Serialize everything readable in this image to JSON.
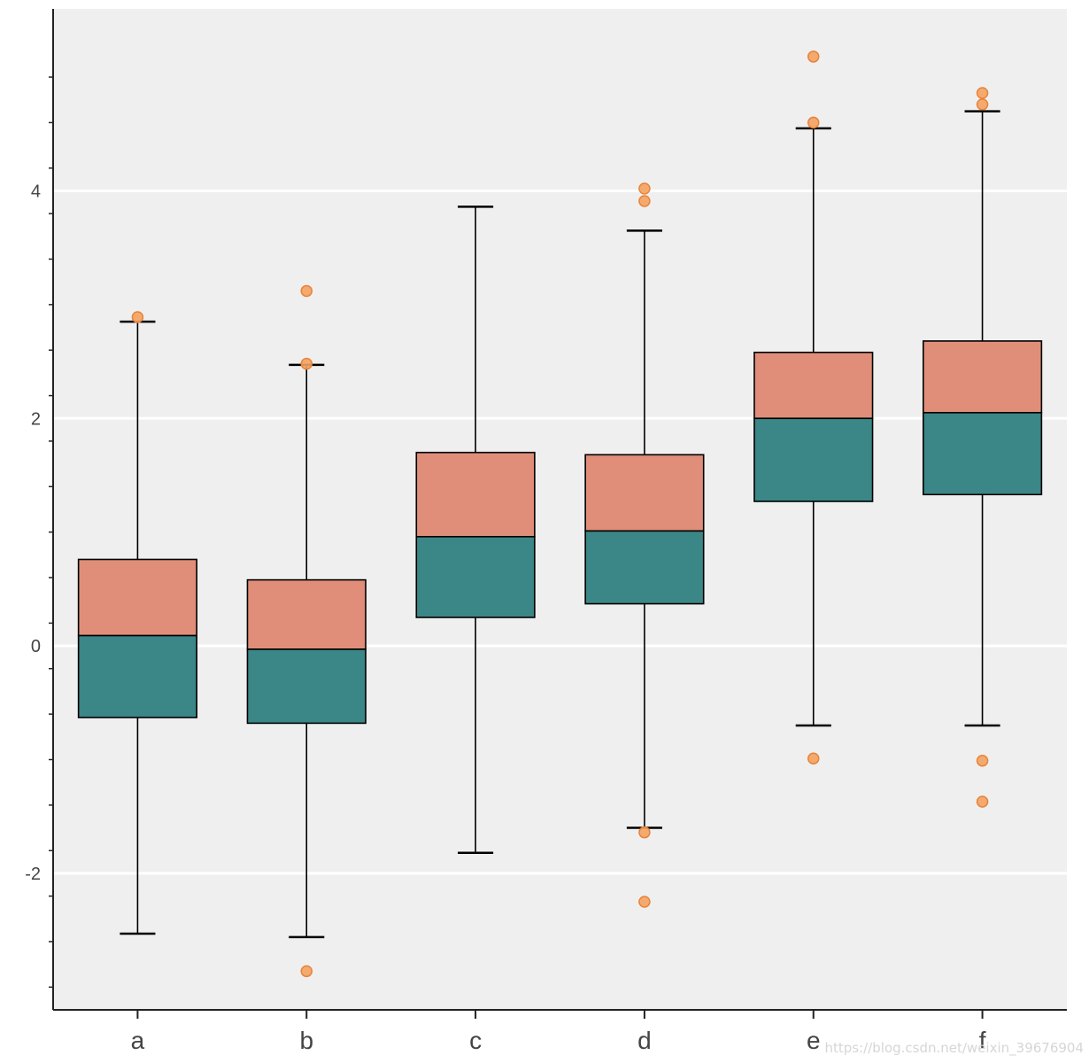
{
  "chart_data": {
    "type": "box",
    "title": "",
    "xlabel": "",
    "ylabel": "",
    "ylim": [
      -3.2,
      5.6
    ],
    "yticks": [
      -2,
      0,
      2,
      4
    ],
    "ytick_labels": [
      "-2",
      "0",
      "2",
      "4"
    ],
    "grid": "horizontal",
    "colors": {
      "background": "#efefef",
      "upper_box": "#e08e79",
      "lower_box": "#3b8686",
      "outlier": "#f4a261",
      "outlier_edge": "#e8823a",
      "grid": "#ffffff",
      "line": "#000000"
    },
    "categories": [
      "a",
      "b",
      "c",
      "d",
      "e",
      "f"
    ],
    "boxes": [
      {
        "label": "a",
        "whisker_low": -2.53,
        "q1": -0.63,
        "median": 0.09,
        "q3": 0.76,
        "whisker_high": 2.85,
        "outliers": [
          2.89
        ]
      },
      {
        "label": "b",
        "whisker_low": -2.56,
        "q1": -0.68,
        "median": -0.03,
        "q3": 0.58,
        "whisker_high": 2.47,
        "outliers": [
          3.12,
          2.48,
          -2.86
        ]
      },
      {
        "label": "c",
        "whisker_low": -1.82,
        "q1": 0.25,
        "median": 0.96,
        "q3": 1.7,
        "whisker_high": 3.86,
        "outliers": []
      },
      {
        "label": "d",
        "whisker_low": -1.6,
        "q1": 0.37,
        "median": 1.01,
        "q3": 1.68,
        "whisker_high": 3.65,
        "outliers": [
          4.02,
          3.91,
          -1.64,
          -2.25
        ]
      },
      {
        "label": "e",
        "whisker_low": -0.7,
        "q1": 1.27,
        "median": 2.0,
        "q3": 2.58,
        "whisker_high": 4.55,
        "outliers": [
          5.18,
          4.6,
          -0.99
        ]
      },
      {
        "label": "f",
        "whisker_low": -0.7,
        "q1": 1.33,
        "median": 2.05,
        "q3": 2.68,
        "whisker_high": 4.7,
        "outliers": [
          4.86,
          4.76,
          -1.01,
          -1.37
        ]
      }
    ]
  },
  "watermark": "https://blog.csdn.net/weixin_39676904"
}
